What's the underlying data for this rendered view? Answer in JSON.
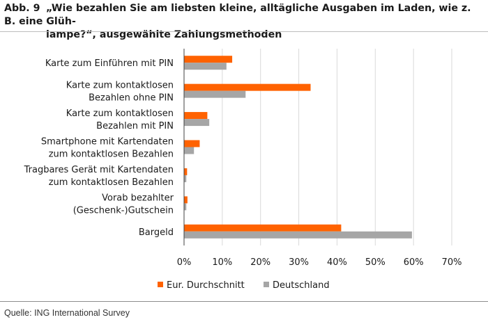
{
  "figure": {
    "number": "Abb. 9",
    "title_line1": "„Wie bezahlen Sie am liebsten kleine, alltägliche Ausgaben im Laden, wie z. B. eine Glüh-",
    "title_line2": "lampe?“, ausgewählte Zahlungsmethoden",
    "source": "Quelle: ING International Survey"
  },
  "chart_data": {
    "type": "bar",
    "orientation": "horizontal",
    "categories": [
      [
        "Karte zum Einführen mit PIN"
      ],
      [
        "Karte zum kontaktlosen",
        "Bezahlen ohne PIN"
      ],
      [
        "Karte zum kontaktlosen",
        "Bezahlen mit PIN"
      ],
      [
        "Smartphone mit Kartendaten",
        "zum kontaktlosen Bezahlen"
      ],
      [
        "Tragbares Gerät mit Kartendaten",
        "zum kontaktlosen Bezahlen"
      ],
      [
        "Vorab bezahlter",
        "(Geschenk-)Gutschein"
      ],
      [
        "Bargeld"
      ]
    ],
    "series": [
      {
        "name": "Eur. Durchschnitt",
        "color": "#ff6200",
        "values": [
          12.5,
          33,
          6,
          4,
          0.7,
          0.8,
          41
        ]
      },
      {
        "name": "Deutschland",
        "color": "#a6a6a6",
        "values": [
          11,
          16,
          6.5,
          2.5,
          0.5,
          0.5,
          59.5
        ]
      }
    ],
    "x_ticks": [
      "0%",
      "10%",
      "20%",
      "30%",
      "40%",
      "50%",
      "60%",
      "70%"
    ],
    "xlim": [
      0,
      70
    ],
    "grid": true,
    "legend_position": "bottom"
  }
}
